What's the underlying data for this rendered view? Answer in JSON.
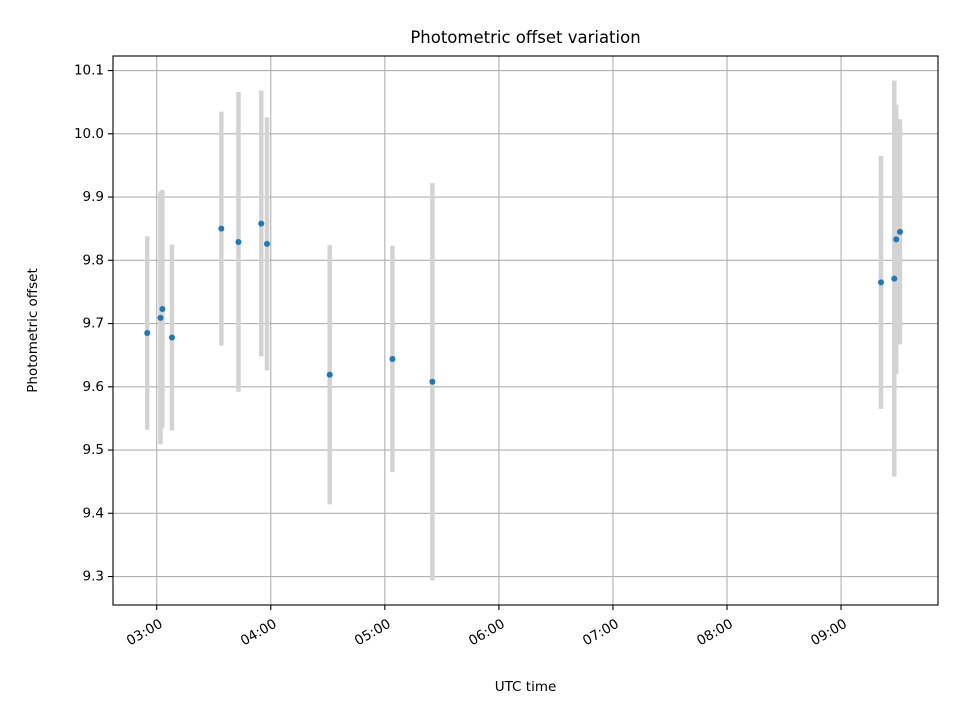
{
  "chart_data": {
    "type": "scatter",
    "title": "Photometric offset variation",
    "xlabel": "UTC time",
    "ylabel": "Photometric offset",
    "x_ticks": [
      "03:00",
      "04:00",
      "05:00",
      "06:00",
      "07:00",
      "08:00",
      "09:00"
    ],
    "y_ticks": [
      "9.3",
      "9.4",
      "9.5",
      "9.6",
      "9.7",
      "9.8",
      "9.9",
      "10.0",
      "10.1"
    ],
    "xlim": [
      "02:37",
      "09:51"
    ],
    "ylim": [
      9.255,
      10.123
    ],
    "grid": true,
    "series": [
      {
        "point_color": "#1f77b4",
        "errorbar_color": "#d3d3d3",
        "points": [
          {
            "t": "02:55",
            "y": 9.685,
            "err": 0.153
          },
          {
            "t": "03:02",
            "y": 9.709,
            "err": 0.2
          },
          {
            "t": "03:03",
            "y": 9.723,
            "err": 0.188
          },
          {
            "t": "03:08",
            "y": 9.678,
            "err": 0.147
          },
          {
            "t": "03:34",
            "y": 9.85,
            "err": 0.185
          },
          {
            "t": "03:43",
            "y": 9.829,
            "err": 0.237
          },
          {
            "t": "03:55",
            "y": 9.858,
            "err": 0.21
          },
          {
            "t": "03:58",
            "y": 9.826,
            "err": 0.2
          },
          {
            "t": "04:31",
            "y": 9.619,
            "err": 0.205
          },
          {
            "t": "05:04",
            "y": 9.644,
            "err": 0.179
          },
          {
            "t": "05:25",
            "y": 9.608,
            "err": 0.314
          },
          {
            "t": "09:21",
            "y": 9.765,
            "err": 0.2
          },
          {
            "t": "09:28",
            "y": 9.771,
            "err": 0.313
          },
          {
            "t": "09:29",
            "y": 9.833,
            "err": 0.213
          },
          {
            "t": "09:31",
            "y": 9.845,
            "err": 0.178
          }
        ]
      }
    ]
  }
}
